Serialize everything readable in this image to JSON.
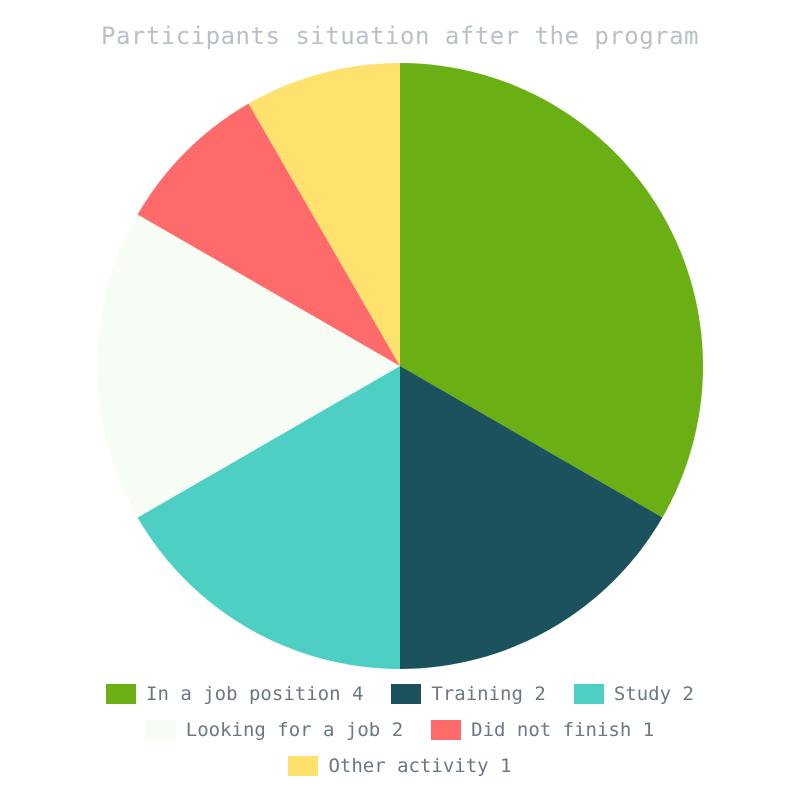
{
  "chart_data": {
    "type": "pie",
    "title": "Participants situation after the program",
    "start_angle_deg": 0,
    "direction": "clockwise",
    "legend_position": "bottom",
    "slices": [
      {
        "label": "In a job position",
        "value": 4,
        "color": "#6ab014"
      },
      {
        "label": "Training",
        "value": 2,
        "color": "#1c525d"
      },
      {
        "label": "Study",
        "value": 2,
        "color": "#4ecfc3"
      },
      {
        "label": "Looking for a job",
        "value": 2,
        "color": "#f7fdf5"
      },
      {
        "label": "Did not finish",
        "value": 1,
        "color": "#ff6b6b"
      },
      {
        "label": "Other activity",
        "value": 1,
        "color": "#ffe26e"
      }
    ]
  }
}
